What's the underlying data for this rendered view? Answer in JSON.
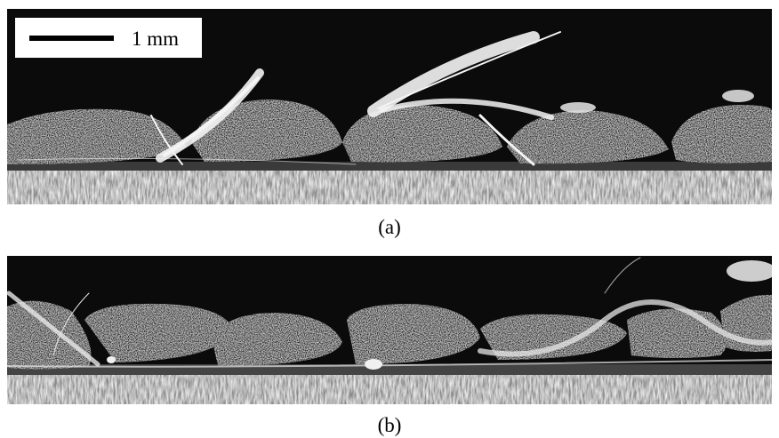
{
  "panels": [
    {
      "label": "(a)",
      "scale_bar": "1 mm"
    },
    {
      "label": "(b)"
    }
  ]
}
